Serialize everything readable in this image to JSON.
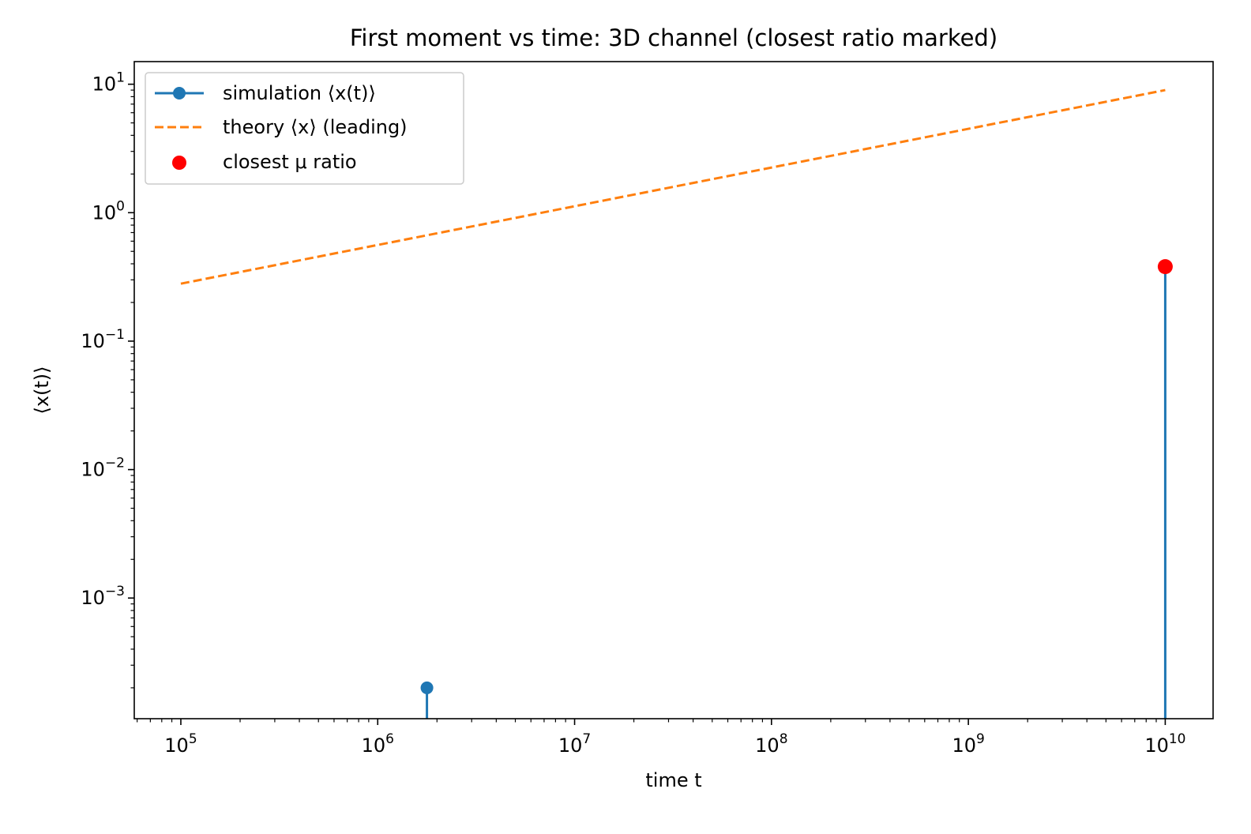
{
  "chart_data": {
    "type": "line",
    "title": "First moment vs time: 3D channel (closest ratio marked)",
    "xlabel": "time t",
    "ylabel": "⟨x(t)⟩",
    "xscale": "log",
    "yscale": "log",
    "xlim": [
      58000,
      17500000000
    ],
    "ylim": [
      0.000115,
      15
    ],
    "x_ticks": [
      {
        "value": 100000,
        "base": "10",
        "exp": "5"
      },
      {
        "value": 1000000,
        "base": "10",
        "exp": "6"
      },
      {
        "value": 10000000,
        "base": "10",
        "exp": "7"
      },
      {
        "value": 100000000,
        "base": "10",
        "exp": "8"
      },
      {
        "value": 1000000000,
        "base": "10",
        "exp": "9"
      },
      {
        "value": 10000000000,
        "base": "10",
        "exp": "10"
      }
    ],
    "y_ticks": [
      {
        "value": 0.001,
        "base": "10",
        "exp": "−3"
      },
      {
        "value": 0.01,
        "base": "10",
        "exp": "−2"
      },
      {
        "value": 0.1,
        "base": "10",
        "exp": "−1"
      },
      {
        "value": 1,
        "base": "10",
        "exp": "0"
      },
      {
        "value": 10,
        "base": "10",
        "exp": "1"
      }
    ],
    "grid": false,
    "legend_position": "top-left",
    "series": [
      {
        "name": "simulation ⟨x(t)⟩",
        "style": "solid line with circle markers",
        "color": "#1f77b4",
        "points": [
          {
            "x": 1778279,
            "y": 0.0002
          },
          {
            "x": 10000000000,
            "y": 0.38
          }
        ]
      },
      {
        "name": "theory ⟨x⟩ (leading)",
        "style": "dashed line",
        "color": "#ff7f0e",
        "points": [
          {
            "x": 100000,
            "y": 0.28
          },
          {
            "x": 10000000000,
            "y": 9.0
          }
        ]
      },
      {
        "name": "closest μ ratio",
        "style": "marker only",
        "color": "#ff0000",
        "points": [
          {
            "x": 10000000000,
            "y": 0.38
          }
        ]
      }
    ]
  }
}
